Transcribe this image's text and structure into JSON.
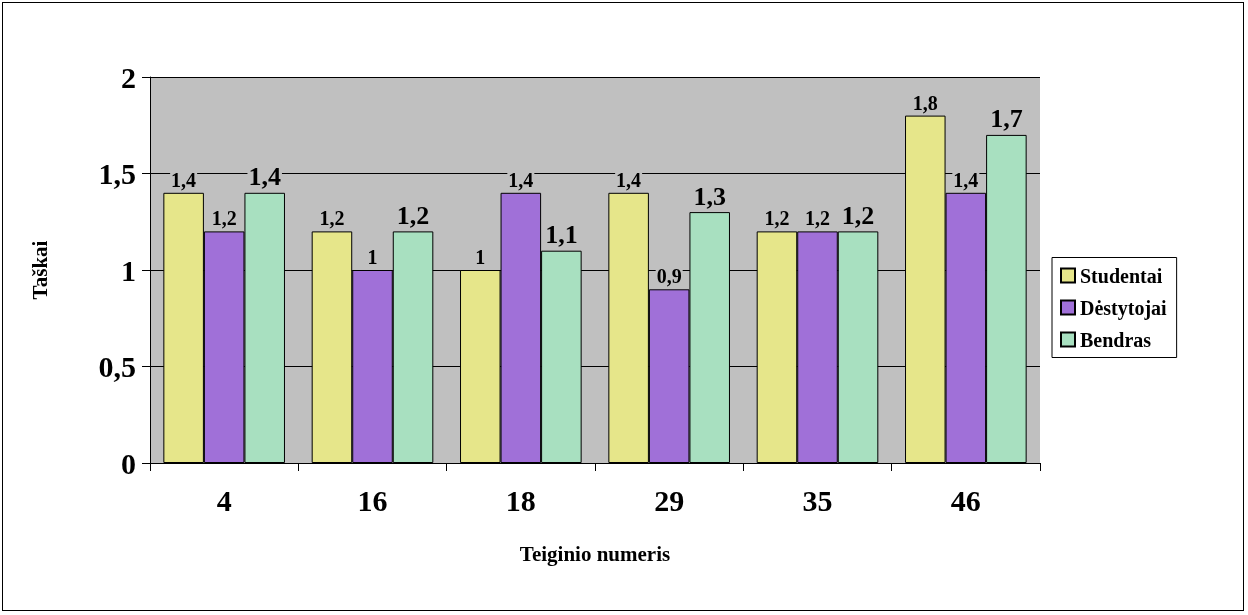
{
  "chart_data": {
    "type": "bar",
    "xlabel": "Teiginio numeris",
    "ylabel": "Taškai",
    "categories": [
      "4",
      "16",
      "18",
      "29",
      "35",
      "46"
    ],
    "series": [
      {
        "name": "Studentai",
        "color": "#e6e68a",
        "values": [
          1.4,
          1.2,
          1.0,
          1.4,
          1.2,
          1.8
        ],
        "value_labels": [
          "1,4",
          "1,2",
          "1",
          "1,4",
          "1,2",
          "1,8"
        ]
      },
      {
        "name": "Dėstytojai",
        "color": "#a070d8",
        "values": [
          1.2,
          1.0,
          1.4,
          0.9,
          1.2,
          1.4
        ],
        "value_labels": [
          "1,2",
          "1",
          "1,4",
          "0,9",
          "1,2",
          "1,4"
        ]
      },
      {
        "name": "Bendras",
        "color": "#a8e0c0",
        "values": [
          1.4,
          1.2,
          1.1,
          1.3,
          1.2,
          1.7
        ],
        "value_labels": [
          "1,4",
          "1,2",
          "1,1",
          "1,3",
          "1,2",
          "1,7"
        ]
      }
    ],
    "ylim": [
      0,
      2
    ],
    "yticks": [
      0,
      {
        "value": 0.5,
        "label": "0,5"
      },
      1,
      {
        "value": 1.5,
        "label": "1,5"
      },
      2
    ],
    "grid": "y",
    "legend": "right"
  }
}
